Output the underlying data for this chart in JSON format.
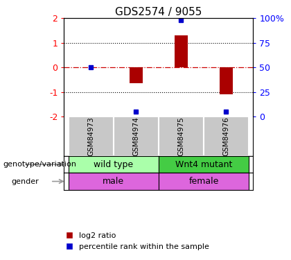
{
  "title": "GDS2574 / 9055",
  "samples": [
    "GSM84973",
    "GSM84974",
    "GSM84975",
    "GSM84976"
  ],
  "log2_ratios": [
    0.0,
    -0.65,
    1.3,
    -1.1
  ],
  "percentile_ranks": [
    50,
    5,
    98,
    5
  ],
  "ylim": [
    -2,
    2
  ],
  "yticks_left": [
    -2,
    -1,
    0,
    1,
    2
  ],
  "yticks_right": [
    0,
    25,
    50,
    75,
    100
  ],
  "bar_color": "#aa0000",
  "dot_color": "#0000cc",
  "zero_line_color": "#cc0000",
  "grid_color": "#000000",
  "genotype_labels": [
    "wild type",
    "Wnt4 mutant"
  ],
  "genotype_colors": [
    "#aaffaa",
    "#44cc44"
  ],
  "gender_color": "#dd66dd",
  "gender_labels": [
    "male",
    "female"
  ],
  "sample_box_color": "#c8c8c8",
  "legend_red_label": "log2 ratio",
  "legend_blue_label": "percentile rank within the sample",
  "left_labels": [
    "genotype/variation",
    "gender"
  ],
  "arrow_color": "#999999",
  "bar_width": 0.3
}
